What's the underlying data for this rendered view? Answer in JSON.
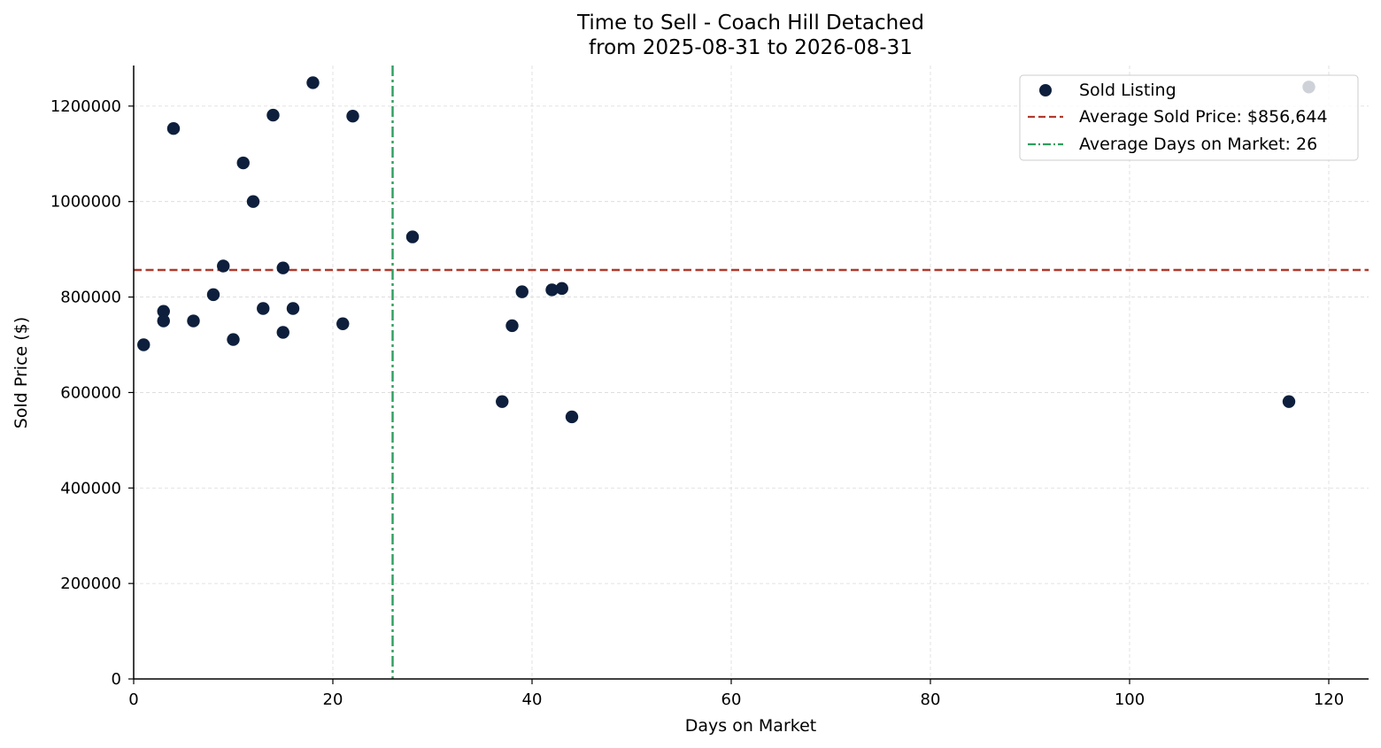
{
  "chart_data": {
    "type": "scatter",
    "title": "Time to Sell - Coach Hill Detached",
    "subtitle": "from 2025-08-31 to 2026-08-31",
    "xlabel": "Days on Market",
    "ylabel": "Sold Price ($)",
    "xlim": [
      0,
      124
    ],
    "ylim": [
      0,
      1285000
    ],
    "x_ticks": [
      0,
      20,
      40,
      60,
      80,
      100,
      120
    ],
    "y_ticks": [
      0,
      200000,
      400000,
      600000,
      800000,
      1000000,
      1200000
    ],
    "grid": true,
    "legend_position": "top-right",
    "series": [
      {
        "name": "Sold Listing",
        "color": "#0d1f3c",
        "points": [
          {
            "x": 1,
            "y": 700000
          },
          {
            "x": 3,
            "y": 770000
          },
          {
            "x": 3,
            "y": 750000
          },
          {
            "x": 4,
            "y": 1153000
          },
          {
            "x": 6,
            "y": 750000
          },
          {
            "x": 8,
            "y": 805000
          },
          {
            "x": 9,
            "y": 865000
          },
          {
            "x": 10,
            "y": 711000
          },
          {
            "x": 11,
            "y": 1081000
          },
          {
            "x": 12,
            "y": 1000000
          },
          {
            "x": 13,
            "y": 776000
          },
          {
            "x": 14,
            "y": 1181000
          },
          {
            "x": 15,
            "y": 861000
          },
          {
            "x": 15,
            "y": 726000
          },
          {
            "x": 16,
            "y": 776000
          },
          {
            "x": 18,
            "y": 1249000
          },
          {
            "x": 21,
            "y": 744000
          },
          {
            "x": 22,
            "y": 1179000
          },
          {
            "x": 28,
            "y": 926000
          },
          {
            "x": 37,
            "y": 581000
          },
          {
            "x": 38,
            "y": 740000
          },
          {
            "x": 39,
            "y": 811000
          },
          {
            "x": 42,
            "y": 815000
          },
          {
            "x": 43,
            "y": 818000
          },
          {
            "x": 44,
            "y": 549000
          },
          {
            "x": 116,
            "y": 581000
          },
          {
            "x": 118,
            "y": 1240000
          }
        ]
      }
    ],
    "reference_lines": [
      {
        "name": "Average Sold Price: $856,644",
        "orientation": "horizontal",
        "value": 856644,
        "style": "dashed",
        "color": "#b03a2e"
      },
      {
        "name": "Average Days on Market: 26",
        "orientation": "vertical",
        "value": 26,
        "style": "dash-dot",
        "color": "#2e9e5e"
      }
    ],
    "colors": {
      "axis": "#000000",
      "grid": "#d9d9d9"
    }
  }
}
